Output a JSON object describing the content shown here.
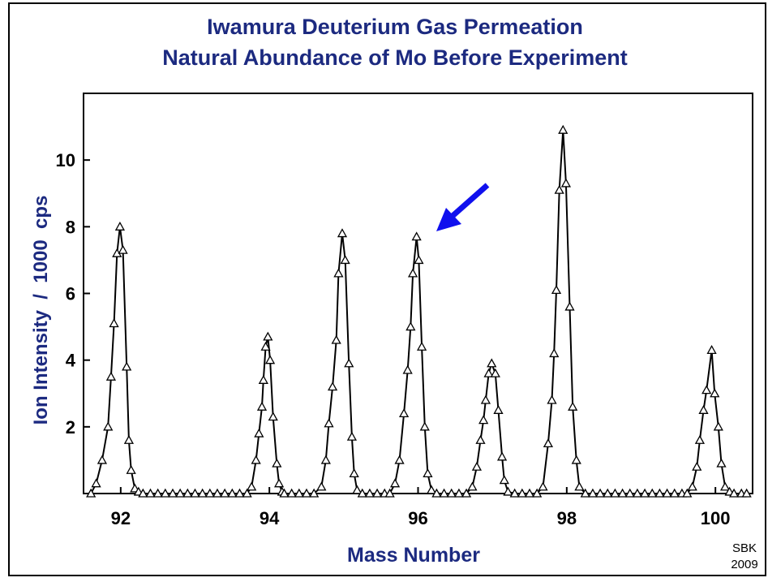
{
  "chart_data": {
    "type": "line",
    "title": [
      "Iwamura Deuterium Gas Permeation",
      "Natural Abundance of Mo Before Experiment"
    ],
    "xlabel": "Mass Number",
    "ylabel": "Ion Intensity  /  1000  cps",
    "credit": [
      "SBK",
      "2009"
    ],
    "color": "#000000",
    "marker": "triangle",
    "x": [
      91.6,
      91.67,
      91.75,
      91.83,
      91.87,
      91.91,
      91.95,
      91.99,
      92.03,
      92.08,
      92.11,
      92.14,
      92.19,
      92.24,
      92.3,
      92.4,
      92.5,
      92.6,
      92.7,
      92.8,
      92.9,
      93.0,
      93.1,
      93.2,
      93.3,
      93.4,
      93.5,
      93.6,
      93.7,
      93.76,
      93.82,
      93.86,
      93.9,
      93.92,
      93.95,
      93.98,
      94.01,
      94.05,
      94.1,
      94.13,
      94.17,
      94.2,
      94.3,
      94.4,
      94.5,
      94.6,
      94.7,
      94.76,
      94.8,
      94.85,
      94.9,
      94.93,
      94.98,
      95.02,
      95.07,
      95.11,
      95.14,
      95.18,
      95.25,
      95.35,
      95.45,
      95.55,
      95.62,
      95.69,
      95.75,
      95.81,
      95.86,
      95.9,
      95.93,
      95.98,
      96.01,
      96.05,
      96.09,
      96.13,
      96.18,
      96.25,
      96.35,
      96.45,
      96.55,
      96.65,
      96.73,
      96.79,
      96.84,
      96.88,
      96.91,
      96.95,
      96.99,
      97.04,
      97.08,
      97.13,
      97.16,
      97.21,
      97.3,
      97.4,
      97.5,
      97.6,
      97.68,
      97.75,
      97.8,
      97.83,
      97.86,
      97.9,
      97.95,
      97.99,
      98.04,
      98.08,
      98.13,
      98.17,
      98.25,
      98.35,
      98.45,
      98.55,
      98.65,
      98.75,
      98.85,
      98.95,
      99.05,
      99.15,
      99.25,
      99.35,
      99.45,
      99.55,
      99.62,
      99.69,
      99.75,
      99.79,
      99.84,
      99.88,
      99.95,
      99.99,
      100.04,
      100.08,
      100.13,
      100.19,
      100.25,
      100.35,
      100.42
    ],
    "values": [
      0,
      0.3,
      1.0,
      2.0,
      3.5,
      5.1,
      7.2,
      8.0,
      7.3,
      3.8,
      1.6,
      0.7,
      0.15,
      0.05,
      0,
      0,
      0,
      0,
      0,
      0,
      0,
      0,
      0,
      0,
      0,
      0,
      0,
      0,
      0,
      0.2,
      1.0,
      1.8,
      2.6,
      3.4,
      4.4,
      4.7,
      4.0,
      2.3,
      0.9,
      0.3,
      0.05,
      0,
      0,
      0,
      0,
      0,
      0.2,
      1.0,
      2.1,
      3.2,
      4.6,
      6.6,
      7.8,
      7.0,
      3.9,
      1.7,
      0.6,
      0.1,
      0,
      0,
      0,
      0,
      0,
      0.3,
      1.0,
      2.4,
      3.7,
      5.0,
      6.6,
      7.7,
      7.0,
      4.4,
      2.0,
      0.6,
      0.1,
      0,
      0,
      0,
      0,
      0,
      0.2,
      0.8,
      1.6,
      2.2,
      2.8,
      3.6,
      3.9,
      3.6,
      2.5,
      1.1,
      0.4,
      0.05,
      0,
      0,
      0,
      0,
      0.2,
      1.5,
      2.8,
      4.2,
      6.1,
      9.1,
      10.9,
      9.3,
      5.6,
      2.6,
      1.0,
      0.2,
      0,
      0,
      0,
      0,
      0,
      0,
      0,
      0,
      0,
      0,
      0,
      0,
      0,
      0,
      0,
      0.2,
      0.8,
      1.6,
      2.5,
      3.1,
      4.3,
      3.0,
      2.0,
      0.9,
      0.2,
      0.05,
      0,
      0,
      0
    ],
    "xlim": [
      91.5,
      100.5
    ],
    "xticks": [
      92,
      94,
      96,
      98,
      100
    ],
    "ylim": [
      0,
      12
    ],
    "yticks": [
      2,
      4,
      6,
      8,
      10
    ],
    "grid": false
  }
}
